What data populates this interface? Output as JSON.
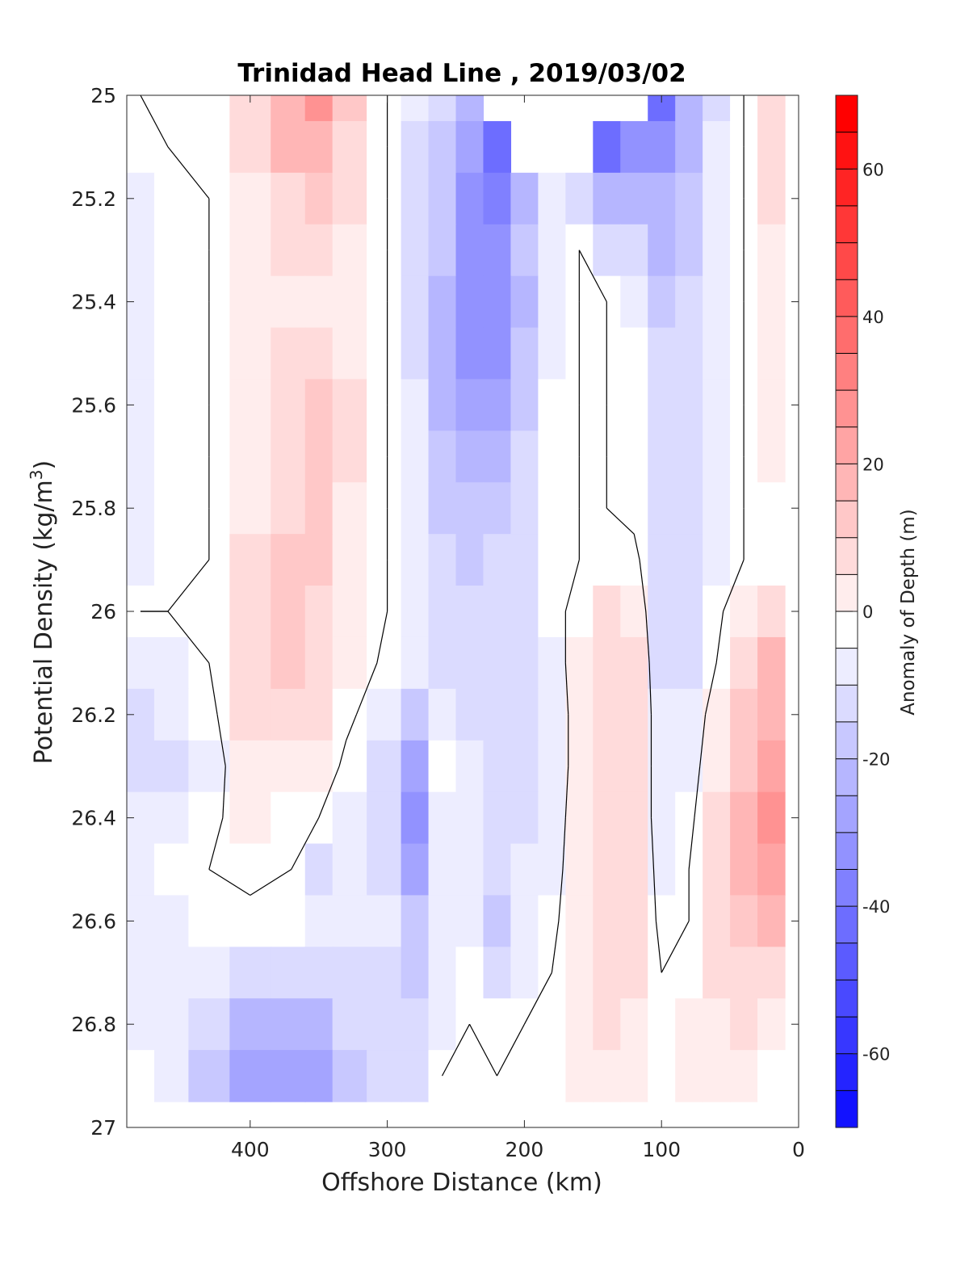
{
  "chart_data": {
    "type": "heatmap",
    "subtype": "filled-contour",
    "title": "Trinidad Head Line , 2019/03/02",
    "xlabel": "Offshore Distance (km)",
    "ylabel_main": "Potential Density (kg/m",
    "ylabel_sup": "3",
    "ylabel_close": ")",
    "x_direction": "reversed",
    "xlim": [
      490,
      0
    ],
    "ylim": [
      25,
      27
    ],
    "y_direction": "reversed",
    "xticks": [
      400,
      300,
      200,
      100,
      0
    ],
    "yticks": [
      25,
      25.2,
      25.4,
      25.6,
      25.8,
      26,
      26.2,
      26.4,
      26.6,
      26.8,
      27
    ],
    "ytick_labels": [
      "25",
      "25.2",
      "25.4",
      "25.6",
      "25.8",
      "26",
      "26.2",
      "26.4",
      "26.6",
      "26.8",
      "27"
    ],
    "grid": false,
    "colorbar": {
      "label": "Anomaly of Depth (m)",
      "range": [
        -70,
        70
      ],
      "step": 5,
      "ticks": [
        -60,
        -40,
        -20,
        0,
        20,
        40,
        60
      ],
      "colormap": "blue-white-red"
    },
    "zero_contour": "black",
    "x": [
      480,
      460,
      430,
      400,
      370,
      350,
      330,
      300,
      280,
      260,
      240,
      220,
      200,
      180,
      160,
      140,
      120,
      100,
      80,
      60,
      40,
      20
    ],
    "y": [
      25.0,
      25.1,
      25.2,
      25.3,
      25.4,
      25.5,
      25.6,
      25.7,
      25.8,
      25.9,
      26.0,
      26.1,
      26.2,
      26.3,
      26.4,
      26.5,
      26.6,
      26.7,
      26.8,
      26.9
    ],
    "z": [
      [
        0,
        0,
        0,
        8,
        22,
        28,
        14,
        0,
        -6,
        -12,
        -22,
        null,
        null,
        null,
        null,
        null,
        null,
        -38,
        -22,
        -8,
        0,
        12
      ],
      [
        -2,
        0,
        0,
        8,
        18,
        22,
        12,
        0,
        -8,
        -14,
        -25,
        -38,
        null,
        null,
        null,
        -40,
        -28,
        -30,
        -18,
        -6,
        0,
        12
      ],
      [
        -4,
        -2,
        0,
        6,
        12,
        14,
        8,
        0,
        -8,
        -16,
        -28,
        -35,
        -22,
        -6,
        -12,
        -22,
        -18,
        -20,
        -14,
        -6,
        0,
        8
      ],
      [
        -6,
        -2,
        0,
        5,
        8,
        8,
        6,
        0,
        -8,
        -16,
        -28,
        -28,
        -16,
        -4,
        0,
        -8,
        -10,
        -18,
        -14,
        -6,
        0,
        6
      ],
      [
        -6,
        -2,
        0,
        5,
        6,
        6,
        5,
        0,
        -8,
        -18,
        -30,
        -32,
        -18,
        -5,
        0,
        0,
        -4,
        -14,
        -12,
        -5,
        0,
        6
      ],
      [
        -6,
        -2,
        0,
        5,
        10,
        12,
        6,
        0,
        -8,
        -20,
        -30,
        -32,
        -16,
        -4,
        0,
        0,
        -2,
        -12,
        -10,
        -5,
        0,
        6
      ],
      [
        -6,
        -2,
        0,
        6,
        12,
        14,
        8,
        0,
        -6,
        -18,
        -26,
        -26,
        -14,
        -2,
        0,
        0,
        -2,
        -10,
        -8,
        -4,
        0,
        6
      ],
      [
        -6,
        -2,
        0,
        6,
        12,
        14,
        8,
        0,
        -6,
        -14,
        -20,
        -20,
        -12,
        -2,
        0,
        0,
        -2,
        -8,
        -8,
        -4,
        0,
        4
      ],
      [
        -4,
        -2,
        0,
        6,
        12,
        14,
        6,
        0,
        -6,
        -14,
        -16,
        -16,
        -10,
        -2,
        0,
        0,
        -2,
        -8,
        -8,
        -4,
        0,
        2
      ],
      [
        -4,
        -2,
        0,
        8,
        14,
        14,
        6,
        0,
        -6,
        -12,
        -14,
        -12,
        -10,
        -2,
        0,
        2,
        2,
        -8,
        -8,
        -4,
        0,
        2
      ],
      [
        0,
        0,
        0,
        10,
        14,
        12,
        6,
        0,
        -4,
        -8,
        -12,
        -12,
        -10,
        -2,
        2,
        8,
        6,
        -8,
        -8,
        -2,
        6,
        12
      ],
      [
        -6,
        -4,
        0,
        10,
        14,
        12,
        6,
        -2,
        -6,
        -10,
        -12,
        -12,
        -10,
        -4,
        4,
        12,
        10,
        -8,
        -8,
        0,
        10,
        18
      ],
      [
        -8,
        -6,
        -2,
        8,
        10,
        8,
        2,
        -6,
        -16,
        -6,
        -12,
        -12,
        -10,
        -6,
        4,
        12,
        10,
        -6,
        -6,
        4,
        14,
        20
      ],
      [
        -8,
        -10,
        -4,
        6,
        6,
        6,
        -2,
        -10,
        -24,
        -2,
        -6,
        -10,
        -10,
        -6,
        4,
        12,
        10,
        -6,
        -4,
        6,
        16,
        24
      ],
      [
        -6,
        -6,
        -2,
        4,
        2,
        0,
        -4,
        -8,
        -28,
        -6,
        -4,
        -8,
        -8,
        -6,
        6,
        12,
        10,
        -6,
        -2,
        8,
        18,
        28
      ],
      [
        -4,
        -2,
        0,
        2,
        0,
        -8,
        -6,
        -8,
        -24,
        -6,
        -4,
        -12,
        -6,
        -4,
        6,
        12,
        10,
        -4,
        0,
        8,
        18,
        26
      ],
      [
        -4,
        -4,
        -2,
        -2,
        -2,
        -4,
        -6,
        -4,
        -16,
        -6,
        -6,
        -14,
        -6,
        -2,
        6,
        12,
        8,
        -2,
        0,
        8,
        16,
        18
      ],
      [
        -4,
        -6,
        -6,
        -8,
        -10,
        -8,
        -8,
        -8,
        -14,
        -6,
        -2,
        -10,
        -4,
        0,
        6,
        10,
        8,
        0,
        2,
        8,
        12,
        10
      ],
      [
        -4,
        -6,
        -12,
        -18,
        -20,
        -18,
        -12,
        -10,
        -12,
        -4,
        0,
        -2,
        0,
        0,
        4,
        8,
        6,
        2,
        4,
        6,
        8,
        6
      ],
      [
        0,
        -4,
        -14,
        -24,
        -26,
        -24,
        -16,
        -10,
        -8,
        0,
        0,
        0,
        0,
        0,
        4,
        6,
        4,
        2,
        4,
        6,
        4,
        0
      ]
    ]
  }
}
